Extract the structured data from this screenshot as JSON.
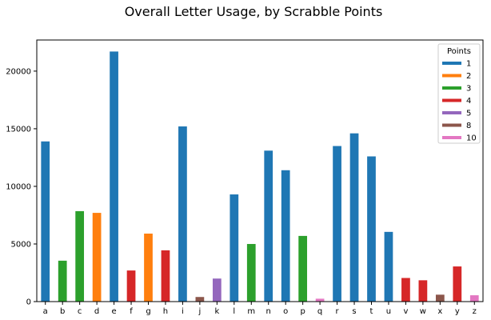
{
  "chart_data": {
    "type": "bar",
    "title": "Overall Letter Usage, by Scrabble Points",
    "xlabel": "",
    "ylabel": "",
    "ylim": [
      0,
      22700
    ],
    "yticks": [
      0,
      5000,
      10000,
      15000,
      20000
    ],
    "grid": false,
    "categories": [
      "a",
      "b",
      "c",
      "d",
      "e",
      "f",
      "g",
      "h",
      "i",
      "j",
      "k",
      "l",
      "m",
      "n",
      "o",
      "p",
      "q",
      "r",
      "s",
      "t",
      "u",
      "v",
      "w",
      "x",
      "y",
      "z"
    ],
    "values": [
      13900,
      3550,
      7850,
      7700,
      21700,
      2700,
      5900,
      4450,
      15200,
      400,
      2000,
      9300,
      5000,
      13100,
      11400,
      5700,
      250,
      13500,
      14600,
      12600,
      6050,
      2050,
      1850,
      600,
      3050,
      550
    ],
    "points": [
      1,
      3,
      3,
      2,
      1,
      4,
      2,
      4,
      1,
      8,
      5,
      1,
      3,
      1,
      1,
      3,
      10,
      1,
      1,
      1,
      1,
      4,
      4,
      8,
      4,
      10
    ],
    "legend": {
      "title": "Points",
      "placement": "top-right",
      "entries": [
        {
          "name": "1",
          "color": "#1f77b4"
        },
        {
          "name": "2",
          "color": "#ff7f0e"
        },
        {
          "name": "3",
          "color": "#2ca02c"
        },
        {
          "name": "4",
          "color": "#d62728"
        },
        {
          "name": "5",
          "color": "#9467bd"
        },
        {
          "name": "8",
          "color": "#8c564b"
        },
        {
          "name": "10",
          "color": "#e377c2"
        }
      ]
    }
  }
}
